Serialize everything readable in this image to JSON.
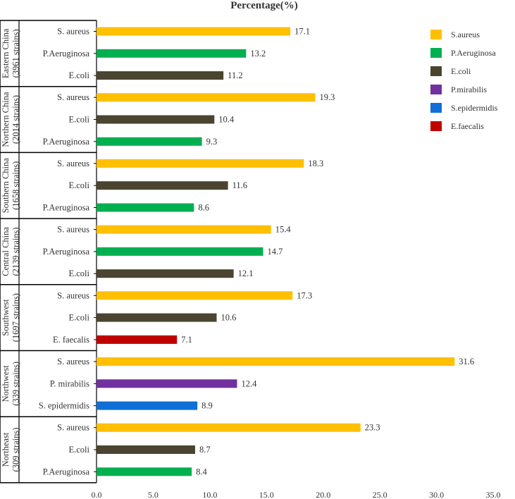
{
  "chart_data": {
    "type": "bar",
    "orientation": "horizontal",
    "title": "Percentage(%)",
    "xlim": [
      0,
      35
    ],
    "xticks": [
      "0.0",
      "5.0",
      "10.0",
      "15.0",
      "20.0",
      "25.0",
      "30.0",
      "35.0"
    ],
    "groups": [
      {
        "region": "Eastern China",
        "strains": "(3961 strains)",
        "bars": [
          {
            "label": "S. aureus",
            "series": "S.aureus",
            "value": 17.1
          },
          {
            "label": "P.Aeruginosa",
            "series": "P.Aeruginosa",
            "value": 13.2
          },
          {
            "label": "E.coli",
            "series": "E.coli",
            "value": 11.2
          }
        ]
      },
      {
        "region": "Northern China",
        "strains": "(2014 strains)",
        "bars": [
          {
            "label": "S. aureus",
            "series": "S.aureus",
            "value": 19.3
          },
          {
            "label": "E.coli",
            "series": "E.coli",
            "value": 10.4
          },
          {
            "label": "P.Aeruginosa",
            "series": "P.Aeruginosa",
            "value": 9.3
          }
        ]
      },
      {
        "region": "Southern China",
        "strains": "(1658 strains)",
        "bars": [
          {
            "label": "S. aureus",
            "series": "S.aureus",
            "value": 18.3
          },
          {
            "label": "E.coli",
            "series": "E.coli",
            "value": 11.6
          },
          {
            "label": "P.Aeruginosa",
            "series": "P.Aeruginosa",
            "value": 8.6
          }
        ]
      },
      {
        "region": "Central China",
        "strains": "(2139 strains)",
        "bars": [
          {
            "label": "S. aureus",
            "series": "S.aureus",
            "value": 15.4
          },
          {
            "label": "P.Aeruginosa",
            "series": "P.Aeruginosa",
            "value": 14.7
          },
          {
            "label": "E.coli",
            "series": "E.coli",
            "value": 12.1
          }
        ]
      },
      {
        "region": "Southwest",
        "strains": "(1697 strains)",
        "bars": [
          {
            "label": "S. aureus",
            "series": "S.aureus",
            "value": 17.3
          },
          {
            "label": "E.coli",
            "series": "E.coli",
            "value": 10.6
          },
          {
            "label": "E. faecalis",
            "series": "E.faecalis",
            "value": 7.1
          }
        ]
      },
      {
        "region": "Northwest",
        "strains": "(339 strains)",
        "bars": [
          {
            "label": "S. aureus",
            "series": "S.aureus",
            "value": 31.6
          },
          {
            "label": "P. mirabilis",
            "series": "P.mirabilis",
            "value": 12.4
          },
          {
            "label": "S. epidermidis",
            "series": "S.epidermidis",
            "value": 8.9
          }
        ]
      },
      {
        "region": "Northeast",
        "strains": "(309 strains)",
        "bars": [
          {
            "label": "S. aureus",
            "series": "S.aureus",
            "value": 23.3
          },
          {
            "label": "E.coli",
            "series": "E.coli",
            "value": 8.7
          },
          {
            "label": "P.Aeruginosa",
            "series": "P.Aeruginosa",
            "value": 8.4
          }
        ]
      }
    ],
    "legend": {
      "placement": "top-right",
      "items": [
        {
          "name": "S.aureus",
          "color": "#FFC000"
        },
        {
          "name": "P.Aeruginosa",
          "color": "#00B050"
        },
        {
          "name": "E.coli",
          "color": "#4A4430"
        },
        {
          "name": "P.mirabilis",
          "color": "#7030A0"
        },
        {
          "name": "S.epidermidis",
          "color": "#0F6FD6"
        },
        {
          "name": "E.faecalis",
          "color": "#C00000"
        }
      ]
    }
  }
}
